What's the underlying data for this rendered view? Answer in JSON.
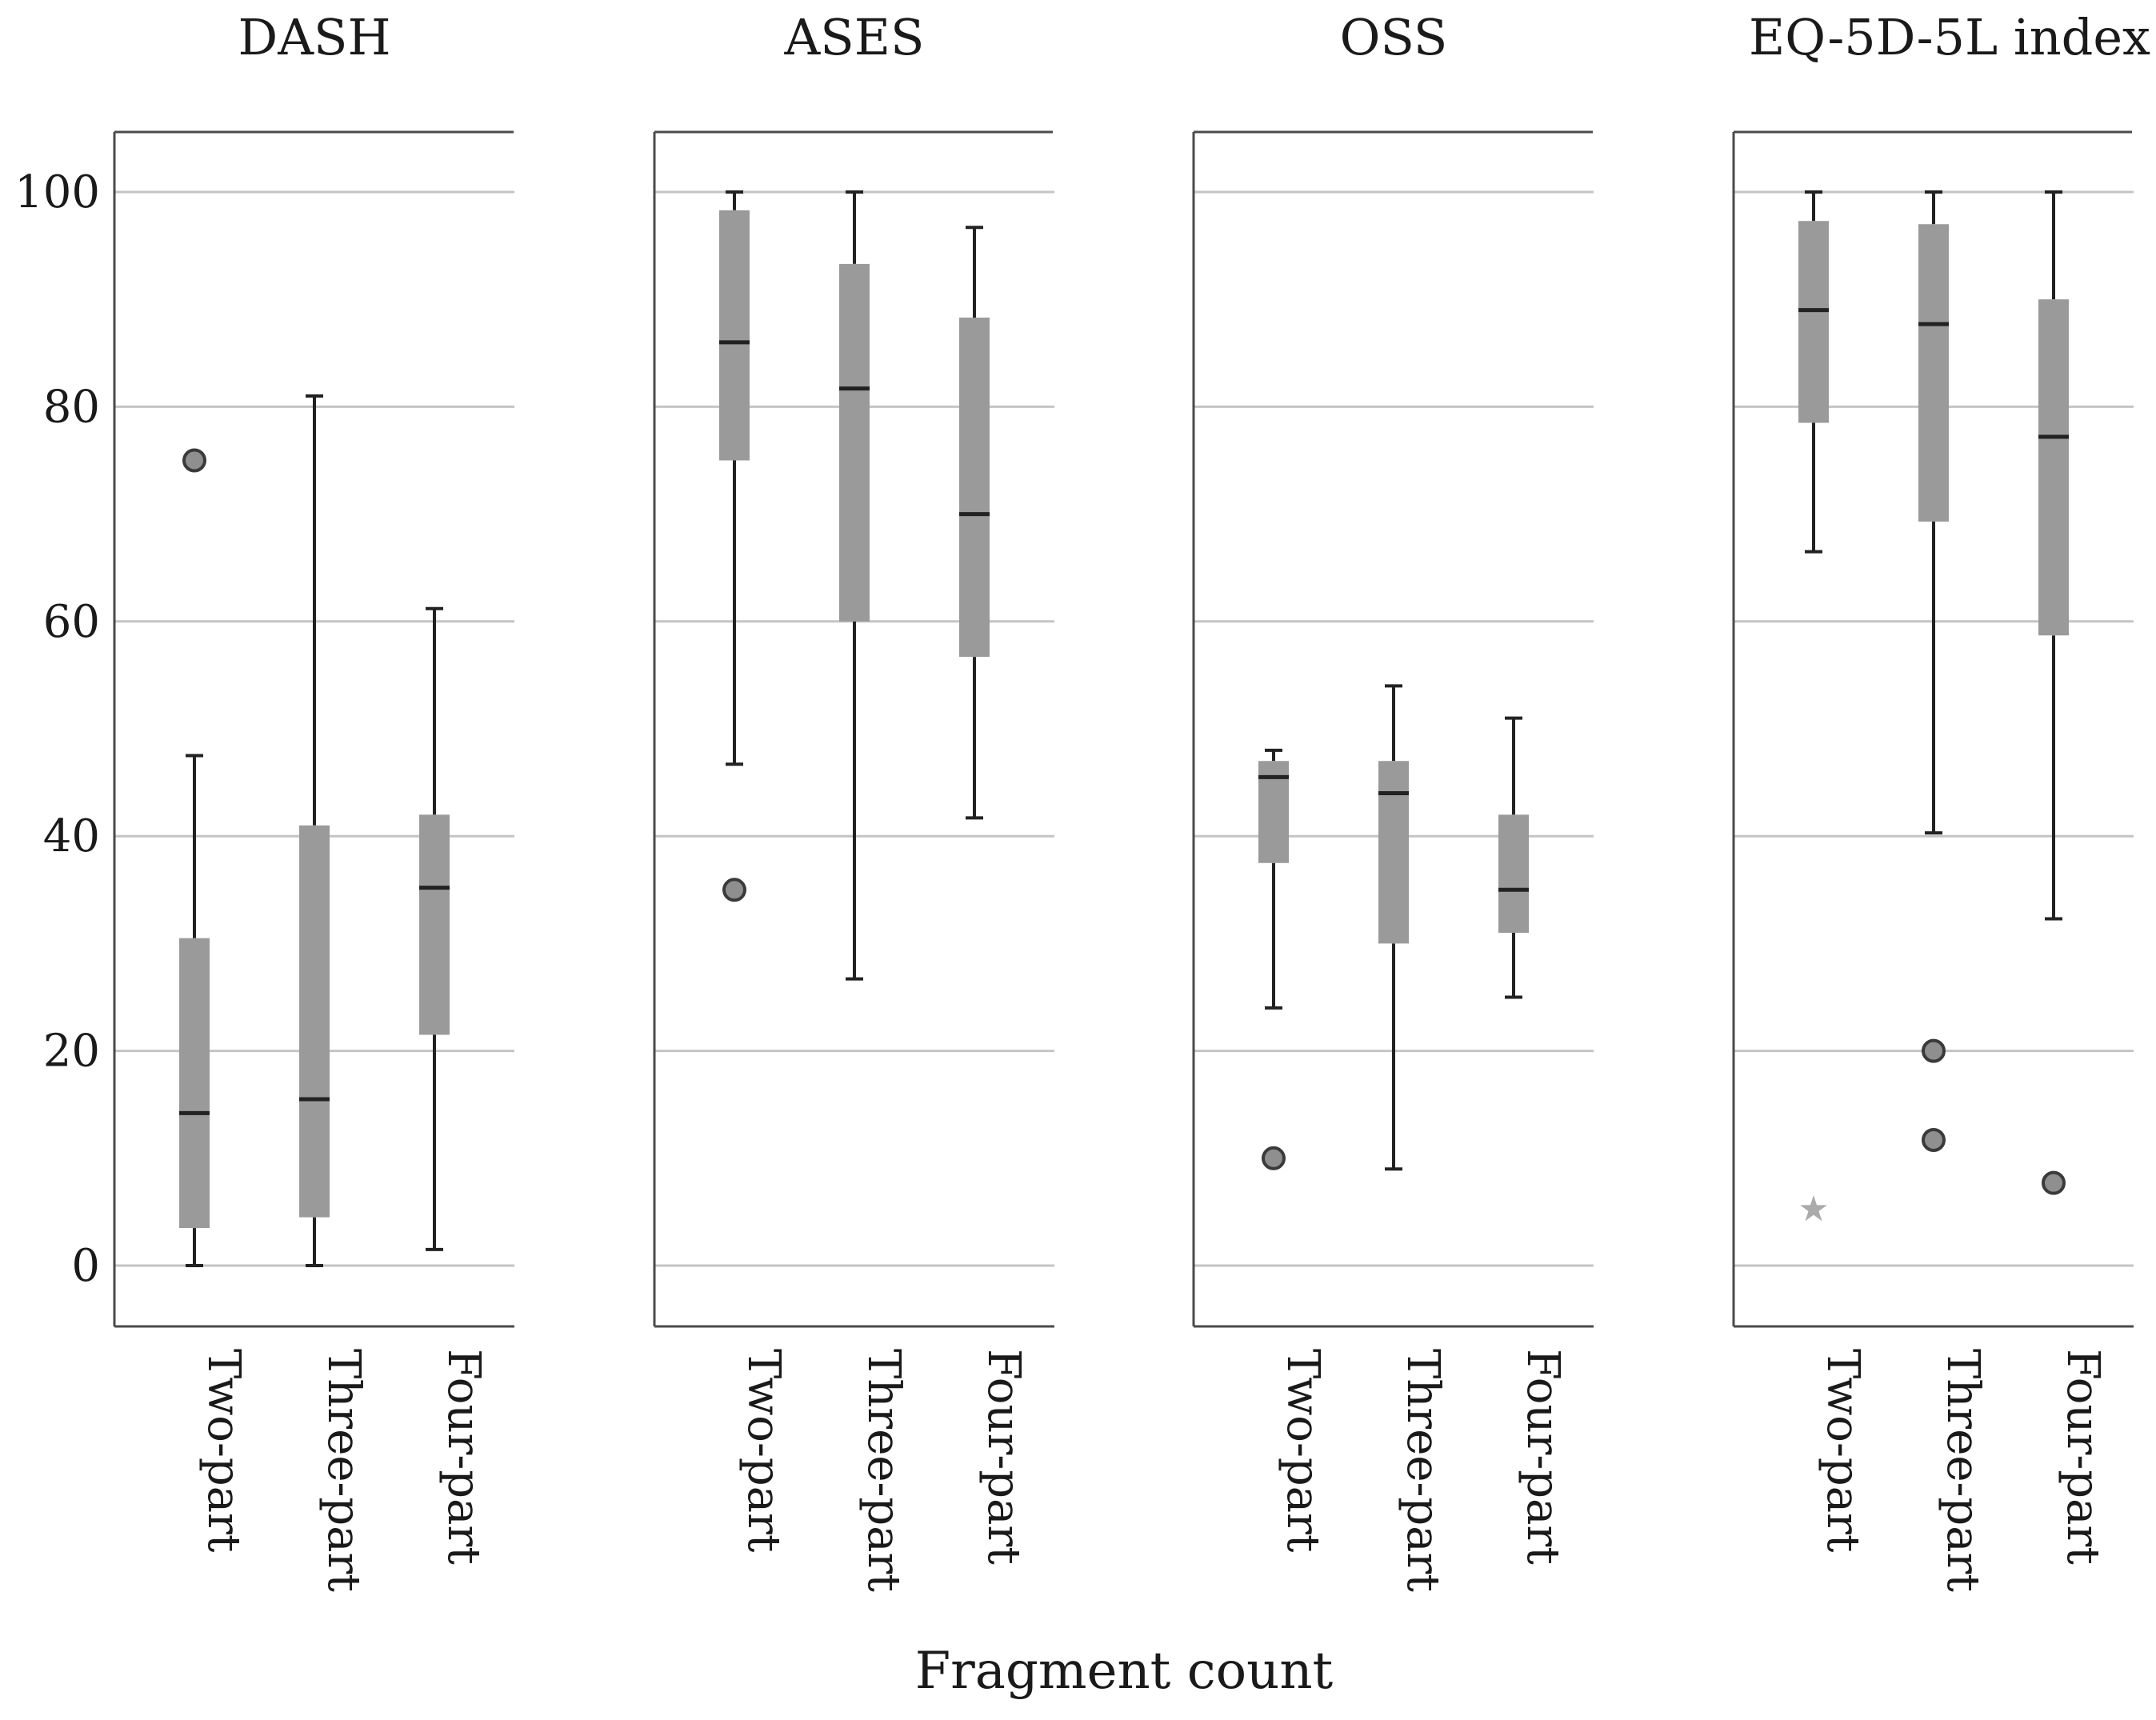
{
  "chart_data": {
    "type": "boxplot",
    "x_axis_title": "Fragment count",
    "y_ticks": [
      "0",
      "20",
      "40",
      "60",
      "80",
      "100"
    ],
    "ylim": [
      -5.5,
      105.5
    ],
    "categories": [
      "Two-part",
      "Three-part",
      "Four-part"
    ],
    "colors": {
      "box": "#9a9a9a",
      "line": "#222222",
      "grid": "#c4c4c4",
      "frame": "#4a4a4a"
    },
    "panels": [
      {
        "title": "DASH",
        "boxes": [
          {
            "category": "Two-part",
            "min": 0,
            "q1": 3.5,
            "median": 14.2,
            "q3": 30.5,
            "max": 47.5,
            "outliers": [
              75
            ],
            "extremes": []
          },
          {
            "category": "Three-part",
            "min": 0,
            "q1": 4.5,
            "median": 15.5,
            "q3": 41,
            "max": 81,
            "outliers": [],
            "extremes": []
          },
          {
            "category": "Four-part",
            "min": 1.5,
            "q1": 21.5,
            "median": 35.2,
            "q3": 42,
            "max": 61.2,
            "outliers": [],
            "extremes": []
          }
        ]
      },
      {
        "title": "ASES",
        "boxes": [
          {
            "category": "Two-part",
            "min": 46.7,
            "q1": 75,
            "median": 86,
            "q3": 98.3,
            "max": 100,
            "outliers": [
              35
            ],
            "extremes": []
          },
          {
            "category": "Three-part",
            "min": 26.7,
            "q1": 60,
            "median": 81.7,
            "q3": 93.3,
            "max": 100,
            "outliers": [],
            "extremes": []
          },
          {
            "category": "Four-part",
            "min": 41.7,
            "q1": 56.7,
            "median": 70,
            "q3": 88.3,
            "max": 96.7,
            "outliers": [],
            "extremes": []
          }
        ]
      },
      {
        "title": "OSS",
        "boxes": [
          {
            "category": "Two-part",
            "min": 24,
            "q1": 37.5,
            "median": 45.5,
            "q3": 47,
            "max": 48,
            "outliers": [
              10
            ],
            "extremes": []
          },
          {
            "category": "Three-part",
            "min": 9,
            "q1": 30,
            "median": 44,
            "q3": 47,
            "max": 54,
            "outliers": [],
            "extremes": []
          },
          {
            "category": "Four-part",
            "min": 25,
            "q1": 31,
            "median": 35,
            "q3": 42,
            "max": 51,
            "outliers": [],
            "extremes": []
          }
        ]
      },
      {
        "title": "EQ-5D-5L index",
        "boxes": [
          {
            "category": "Two-part",
            "min": 66.5,
            "q1": 78.5,
            "median": 89,
            "q3": 97.3,
            "max": 100,
            "outliers": [],
            "extremes": [
              5.3
            ]
          },
          {
            "category": "Three-part",
            "min": 40.3,
            "q1": 69.3,
            "median": 87.7,
            "q3": 97,
            "max": 100,
            "outliers": [
              20,
              11.7
            ],
            "extremes": []
          },
          {
            "category": "Four-part",
            "min": 32.3,
            "q1": 58.7,
            "median": 77.2,
            "q3": 90,
            "max": 100,
            "outliers": [
              7.7
            ],
            "extremes": []
          }
        ]
      }
    ]
  }
}
